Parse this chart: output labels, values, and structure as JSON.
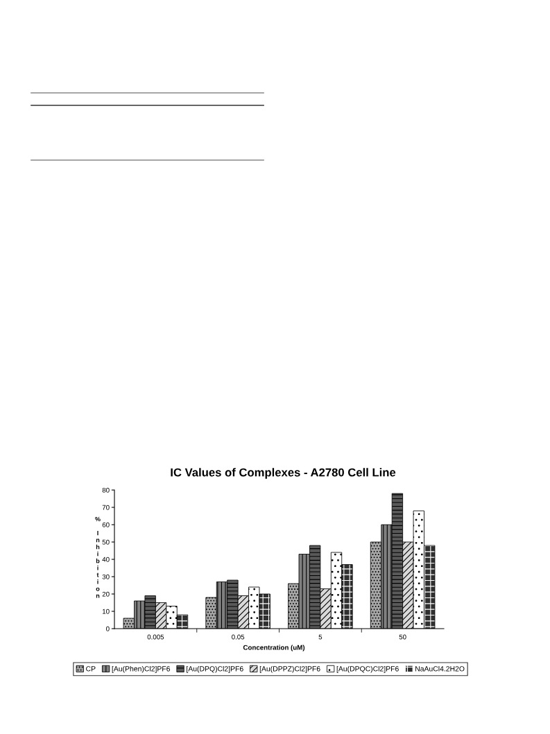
{
  "chart_data": {
    "type": "bar",
    "title": "IC Values of Complexes - A2780 Cell Line",
    "xlabel": "Concentration (uM)",
    "ylabel": "% Inhibition",
    "categories": [
      "0.005",
      "0.05",
      "5",
      "50"
    ],
    "series": [
      {
        "name": "CP",
        "color": "#a6a6a6",
        "values": [
          6,
          18,
          26,
          50
        ]
      },
      {
        "name": "[Au(Phen)Cl2]PF6",
        "color": "#808080",
        "values": [
          16,
          27,
          43,
          60
        ]
      },
      {
        "name": "[Au(DPQ)Cl2]PF6",
        "color": "#595959",
        "values": [
          19,
          28,
          48,
          78
        ]
      },
      {
        "name": "[Au(DPPZ)Cl2]PF6",
        "color": "#d9d9d9",
        "values": [
          15,
          19,
          23,
          50
        ]
      },
      {
        "name": "[Au(DPQC)Cl2]PF6",
        "color": "#ffffff",
        "values": [
          13,
          24,
          44,
          68
        ]
      },
      {
        "name": "NaAuCl4.2H2O",
        "color": "#303030",
        "values": [
          8,
          20,
          37,
          48
        ]
      }
    ],
    "ylim": [
      0,
      80
    ],
    "yticks": [
      0,
      10,
      20,
      30,
      40,
      50,
      60,
      70,
      80
    ],
    "grid": false,
    "legend": "bottom"
  }
}
